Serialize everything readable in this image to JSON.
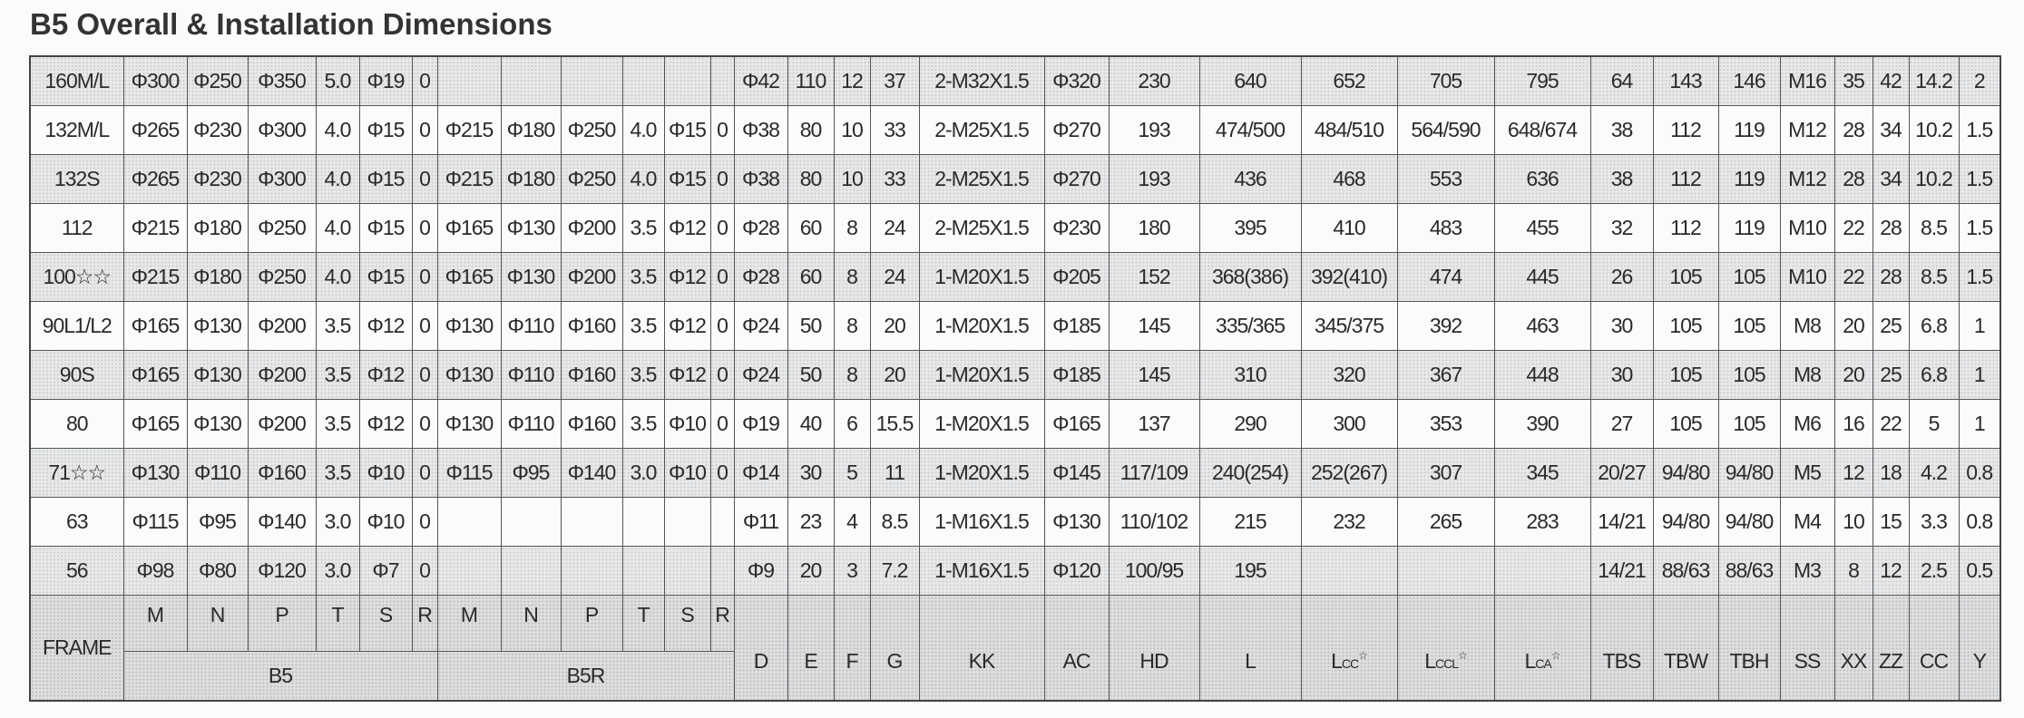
{
  "title": "B5 Overall & Installation Dimensions",
  "table": {
    "header": {
      "frame": "FRAME",
      "group_b5": "B5",
      "group_b5r": "B5R",
      "b5_cols": [
        "M",
        "N",
        "P",
        "T",
        "S",
        "R"
      ],
      "b5r_cols": [
        "M",
        "N",
        "P",
        "T",
        "S",
        "R"
      ],
      "other_cols": [
        {
          "label": "D"
        },
        {
          "label": "E"
        },
        {
          "label": "F"
        },
        {
          "label": "G"
        },
        {
          "label": "KK"
        },
        {
          "label": "AC"
        },
        {
          "label": "HD"
        },
        {
          "label": "L"
        },
        {
          "label": "L",
          "sub": "CC",
          "mark": "☆"
        },
        {
          "label": "L",
          "sub": "CCL",
          "mark": "☆"
        },
        {
          "label": "L",
          "sub": "CA",
          "mark": "☆"
        },
        {
          "label": "TBS"
        },
        {
          "label": "TBW"
        },
        {
          "label": "TBH"
        },
        {
          "label": "SS"
        },
        {
          "label": "XX"
        },
        {
          "label": "ZZ"
        },
        {
          "label": "CC"
        },
        {
          "label": "Y"
        }
      ]
    },
    "rows": [
      [
        "160M/L",
        "Φ300",
        "Φ250",
        "Φ350",
        "5.0",
        "Φ19",
        "0",
        "",
        "",
        "",
        "",
        "",
        "",
        "Φ42",
        "110",
        "12",
        "37",
        "2-M32X1.5",
        "Φ320",
        "230",
        "640",
        "652",
        "705",
        "795",
        "64",
        "143",
        "146",
        "M16",
        "35",
        "42",
        "14.2",
        "2"
      ],
      [
        "132M/L",
        "Φ265",
        "Φ230",
        "Φ300",
        "4.0",
        "Φ15",
        "0",
        "Φ215",
        "Φ180",
        "Φ250",
        "4.0",
        "Φ15",
        "0",
        "Φ38",
        "80",
        "10",
        "33",
        "2-M25X1.5",
        "Φ270",
        "193",
        "474/500",
        "484/510",
        "564/590",
        "648/674",
        "38",
        "112",
        "119",
        "M12",
        "28",
        "34",
        "10.2",
        "1.5"
      ],
      [
        "132S",
        "Φ265",
        "Φ230",
        "Φ300",
        "4.0",
        "Φ15",
        "0",
        "Φ215",
        "Φ180",
        "Φ250",
        "4.0",
        "Φ15",
        "0",
        "Φ38",
        "80",
        "10",
        "33",
        "2-M25X1.5",
        "Φ270",
        "193",
        "436",
        "468",
        "553",
        "636",
        "38",
        "112",
        "119",
        "M12",
        "28",
        "34",
        "10.2",
        "1.5"
      ],
      [
        "112",
        "Φ215",
        "Φ180",
        "Φ250",
        "4.0",
        "Φ15",
        "0",
        "Φ165",
        "Φ130",
        "Φ200",
        "3.5",
        "Φ12",
        "0",
        "Φ28",
        "60",
        "8",
        "24",
        "2-M25X1.5",
        "Φ230",
        "180",
        "395",
        "410",
        "483",
        "455",
        "32",
        "112",
        "119",
        "M10",
        "22",
        "28",
        "8.5",
        "1.5"
      ],
      [
        "100☆☆",
        "Φ215",
        "Φ180",
        "Φ250",
        "4.0",
        "Φ15",
        "0",
        "Φ165",
        "Φ130",
        "Φ200",
        "3.5",
        "Φ12",
        "0",
        "Φ28",
        "60",
        "8",
        "24",
        "1-M20X1.5",
        "Φ205",
        "152",
        "368(386)",
        "392(410)",
        "474",
        "445",
        "26",
        "105",
        "105",
        "M10",
        "22",
        "28",
        "8.5",
        "1.5"
      ],
      [
        "90L1/L2",
        "Φ165",
        "Φ130",
        "Φ200",
        "3.5",
        "Φ12",
        "0",
        "Φ130",
        "Φ110",
        "Φ160",
        "3.5",
        "Φ12",
        "0",
        "Φ24",
        "50",
        "8",
        "20",
        "1-M20X1.5",
        "Φ185",
        "145",
        "335/365",
        "345/375",
        "392",
        "463",
        "30",
        "105",
        "105",
        "M8",
        "20",
        "25",
        "6.8",
        "1"
      ],
      [
        "90S",
        "Φ165",
        "Φ130",
        "Φ200",
        "3.5",
        "Φ12",
        "0",
        "Φ130",
        "Φ110",
        "Φ160",
        "3.5",
        "Φ12",
        "0",
        "Φ24",
        "50",
        "8",
        "20",
        "1-M20X1.5",
        "Φ185",
        "145",
        "310",
        "320",
        "367",
        "448",
        "30",
        "105",
        "105",
        "M8",
        "20",
        "25",
        "6.8",
        "1"
      ],
      [
        "80",
        "Φ165",
        "Φ130",
        "Φ200",
        "3.5",
        "Φ12",
        "0",
        "Φ130",
        "Φ110",
        "Φ160",
        "3.5",
        "Φ10",
        "0",
        "Φ19",
        "40",
        "6",
        "15.5",
        "1-M20X1.5",
        "Φ165",
        "137",
        "290",
        "300",
        "353",
        "390",
        "27",
        "105",
        "105",
        "M6",
        "16",
        "22",
        "5",
        "1"
      ],
      [
        "71☆☆",
        "Φ130",
        "Φ110",
        "Φ160",
        "3.5",
        "Φ10",
        "0",
        "Φ115",
        "Φ95",
        "Φ140",
        "3.0",
        "Φ10",
        "0",
        "Φ14",
        "30",
        "5",
        "11",
        "1-M20X1.5",
        "Φ145",
        "117/109",
        "240(254)",
        "252(267)",
        "307",
        "345",
        "20/27",
        "94/80",
        "94/80",
        "M5",
        "12",
        "18",
        "4.2",
        "0.8"
      ],
      [
        "63",
        "Φ115",
        "Φ95",
        "Φ140",
        "3.0",
        "Φ10",
        "0",
        "",
        "",
        "",
        "",
        "",
        "",
        "Φ11",
        "23",
        "4",
        "8.5",
        "1-M16X1.5",
        "Φ130",
        "110/102",
        "215",
        "232",
        "265",
        "283",
        "14/21",
        "94/80",
        "94/80",
        "M4",
        "10",
        "15",
        "3.3",
        "0.8"
      ],
      [
        "56",
        "Φ98",
        "Φ80",
        "Φ120",
        "3.0",
        "Φ7",
        "0",
        "",
        "",
        "",
        "",
        "",
        "",
        "Φ9",
        "20",
        "3",
        "7.2",
        "1-M16X1.5",
        "Φ120",
        "100/95",
        "195",
        "",
        "",
        "",
        "14/21",
        "88/63",
        "88/63",
        "M3",
        "8",
        "12",
        "2.5",
        "0.5"
      ]
    ]
  }
}
